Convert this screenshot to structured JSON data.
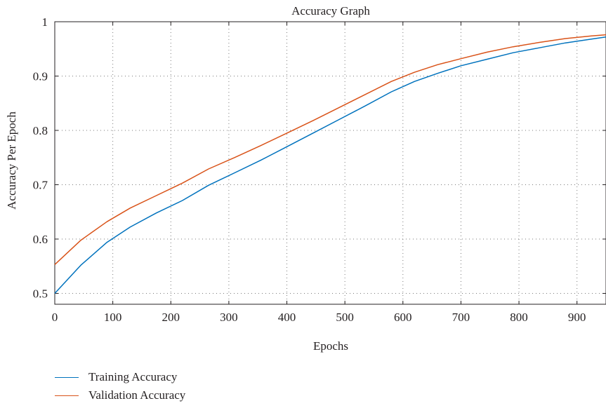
{
  "chart_data": {
    "type": "line",
    "title": "Accuracy Graph",
    "xlabel": "Epochs",
    "ylabel": "Accuracy Per Epoch",
    "xlim": [
      0,
      950
    ],
    "ylim": [
      0.48,
      1.0
    ],
    "xticks": [
      0,
      100,
      200,
      300,
      400,
      500,
      600,
      700,
      800,
      900
    ],
    "yticks": [
      0.5,
      0.6,
      0.7,
      0.8,
      0.9,
      1
    ],
    "ytick_labels": [
      "0.5",
      "0.6",
      "0.7",
      "0.8",
      "0.9",
      "1"
    ],
    "grid": true,
    "legend_position": "bottom-left",
    "series": [
      {
        "name": "Training Accuracy",
        "color": "#0072bd",
        "x": [
          0,
          45,
          90,
          130,
          175,
          220,
          265,
          310,
          355,
          400,
          445,
          490,
          535,
          580,
          620,
          660,
          700,
          745,
          790,
          835,
          880,
          925,
          950
        ],
        "y": [
          0.5,
          0.552,
          0.594,
          0.622,
          0.648,
          0.671,
          0.699,
          0.722,
          0.745,
          0.77,
          0.795,
          0.82,
          0.845,
          0.871,
          0.89,
          0.905,
          0.919,
          0.931,
          0.943,
          0.952,
          0.961,
          0.968,
          0.972
        ]
      },
      {
        "name": "Validation Accuracy",
        "color": "#d95319",
        "x": [
          0,
          45,
          90,
          130,
          175,
          220,
          265,
          310,
          355,
          400,
          445,
          490,
          535,
          580,
          620,
          660,
          700,
          745,
          790,
          835,
          880,
          925,
          950
        ],
        "y": [
          0.553,
          0.598,
          0.632,
          0.657,
          0.68,
          0.703,
          0.729,
          0.75,
          0.772,
          0.795,
          0.818,
          0.842,
          0.866,
          0.89,
          0.907,
          0.921,
          0.932,
          0.944,
          0.954,
          0.962,
          0.969,
          0.974,
          0.976
        ]
      }
    ]
  }
}
